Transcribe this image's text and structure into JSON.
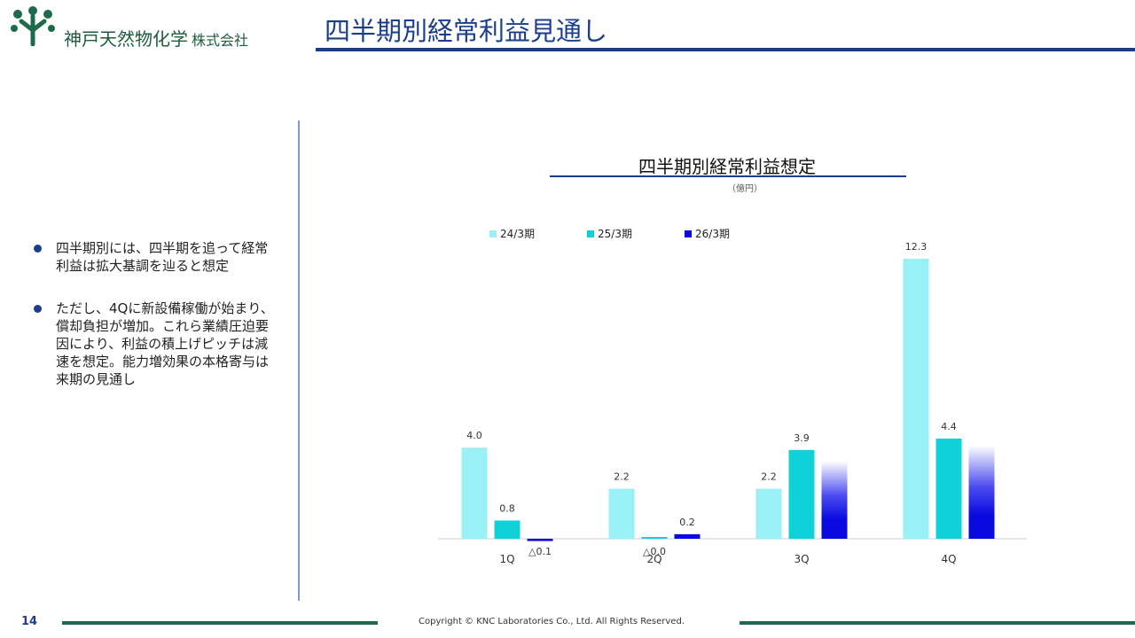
{
  "header": {
    "company_name": "神戸天然物化学",
    "company_suffix": "株式会社",
    "page_title": "四半期別経常利益見通し"
  },
  "sidebar": {
    "bullets": [
      "四半期別には、四半期を追って経常利益は拡大基調を辿ると想定",
      "ただし、4Qに新設備稼働が始まり、償却負担が増加。これら業績圧迫要因により、利益の積上げピッチは減速を想定。能力増効果の本格寄与は来期の見通し"
    ]
  },
  "chart_data": {
    "type": "bar",
    "title": "四半期別経常利益想定",
    "unit_label": "（億円）",
    "categories": [
      "1Q",
      "2Q",
      "3Q",
      "4Q"
    ],
    "series": [
      {
        "name": "24/3期",
        "color": "#99f1f6",
        "values": [
          4.0,
          2.2,
          2.2,
          12.3
        ],
        "labels": [
          "4.0",
          "2.2",
          "2.2",
          "12.3"
        ]
      },
      {
        "name": "25/3期",
        "color": "#10d0d8",
        "values": [
          0.8,
          0.0,
          3.9,
          4.4
        ],
        "labels": [
          "0.8",
          "△0.0",
          "3.9",
          "4.4"
        ]
      },
      {
        "name": "26/3期",
        "color": "#0a0ae0",
        "values": [
          -0.1,
          0.2,
          null,
          null
        ],
        "labels": [
          "△0.1",
          "0.2",
          "",
          ""
        ]
      }
    ],
    "projection_bars": [
      {
        "category": "3Q",
        "series": "26/3期",
        "value": 3.4
      },
      {
        "category": "4Q",
        "series": "26/3期",
        "value": 4.1
      }
    ],
    "ylim": [
      -0.1,
      12.3
    ],
    "xlabel": "",
    "ylabel": "",
    "legend": "top-left"
  },
  "footer": {
    "page_number": "14",
    "copyright": "Copyright © KNC Laboratories Co., Ltd. All Rights Reserved."
  },
  "colors": {
    "brand_green": "#1d6b4b",
    "brand_blue": "#1b3f8b"
  }
}
